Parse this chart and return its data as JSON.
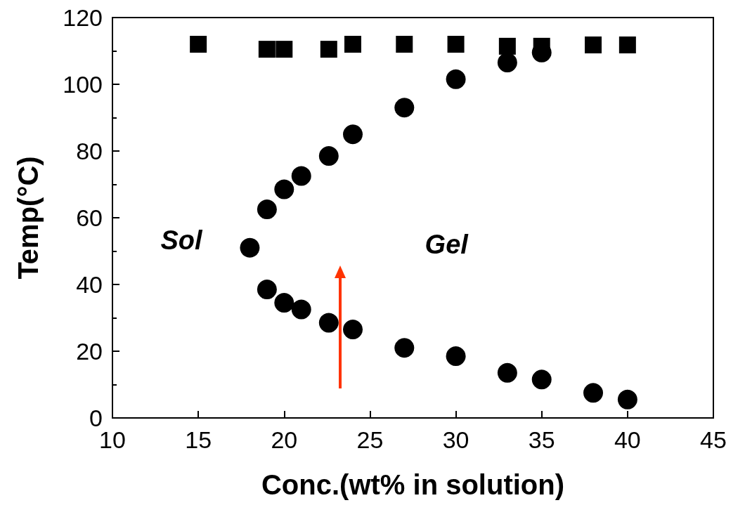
{
  "chart_data": {
    "type": "scatter",
    "xlabel": "Conc.(wt% in solution)",
    "ylabel": "Temp(°C)",
    "xlim": [
      10,
      45
    ],
    "xticks": [
      10,
      15,
      20,
      25,
      30,
      35,
      40,
      45
    ],
    "ylim": [
      0,
      120
    ],
    "yticks": [
      0,
      20,
      40,
      60,
      80,
      100,
      120
    ],
    "grid": false,
    "annotations": [
      "Sol",
      "Gel"
    ],
    "series": [
      {
        "marker": "square",
        "color": "#000000",
        "x": [
          15,
          19,
          20,
          22.6,
          24,
          27,
          30,
          33,
          35,
          38,
          40
        ],
        "values": [
          112,
          110.5,
          110.5,
          110.5,
          112,
          112,
          112,
          111.4,
          111.4,
          111.8,
          111.8
        ]
      },
      {
        "marker": "circle",
        "color": "#000000",
        "x": [
          18,
          19,
          20,
          21,
          22.6,
          24,
          27,
          30,
          33,
          35,
          19,
          20,
          21,
          22.6,
          24,
          27,
          30,
          33,
          35,
          38,
          40
        ],
        "values": [
          51,
          62.5,
          68.5,
          72.5,
          78.5,
          85,
          93,
          101.5,
          106.5,
          109.5,
          38.5,
          34.5,
          32.5,
          28.5,
          26.5,
          21,
          18.5,
          13.5,
          11.5,
          7.5,
          5.5
        ]
      }
    ]
  }
}
